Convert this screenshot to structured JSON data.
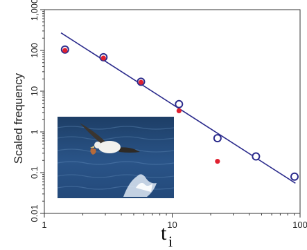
{
  "chart_data": {
    "type": "scatter",
    "x_scale": "log",
    "y_scale": "log",
    "xlim": [
      1,
      100
    ],
    "ylim": [
      0.01,
      1000
    ],
    "x_ticks": [
      1,
      10,
      100
    ],
    "x_tick_labels": [
      "1",
      "10",
      "100"
    ],
    "y_ticks": [
      0.01,
      0.1,
      1,
      10,
      100,
      1000
    ],
    "y_tick_labels": [
      "0.01",
      "0.1",
      "1",
      "10",
      "100",
      "1,000"
    ],
    "ylabel": "Scaled frequency",
    "xlabel_main": "t",
    "xlabel_sub": "i",
    "series": [
      {
        "marker": "open-circle",
        "color": "#2b2b8c",
        "points": [
          [
            1.45,
            105
          ],
          [
            2.9,
            68
          ],
          [
            5.7,
            17
          ],
          [
            11.3,
            4.8
          ],
          [
            22.6,
            0.7
          ],
          [
            45.2,
            0.25
          ],
          [
            90.5,
            0.08
          ]
        ]
      },
      {
        "marker": "filled-circle",
        "color": "#e02030",
        "points": [
          [
            1.45,
            100
          ],
          [
            2.9,
            65
          ],
          [
            5.7,
            16.5
          ],
          [
            11.3,
            3.3
          ],
          [
            22.6,
            0.19
          ]
        ]
      }
    ],
    "fit_line": {
      "color": "#2b2b8c",
      "from": [
        1.35,
        270
      ],
      "to": [
        92,
        0.055
      ]
    },
    "grid": false,
    "inset_photo": "albatross-over-ocean"
  }
}
